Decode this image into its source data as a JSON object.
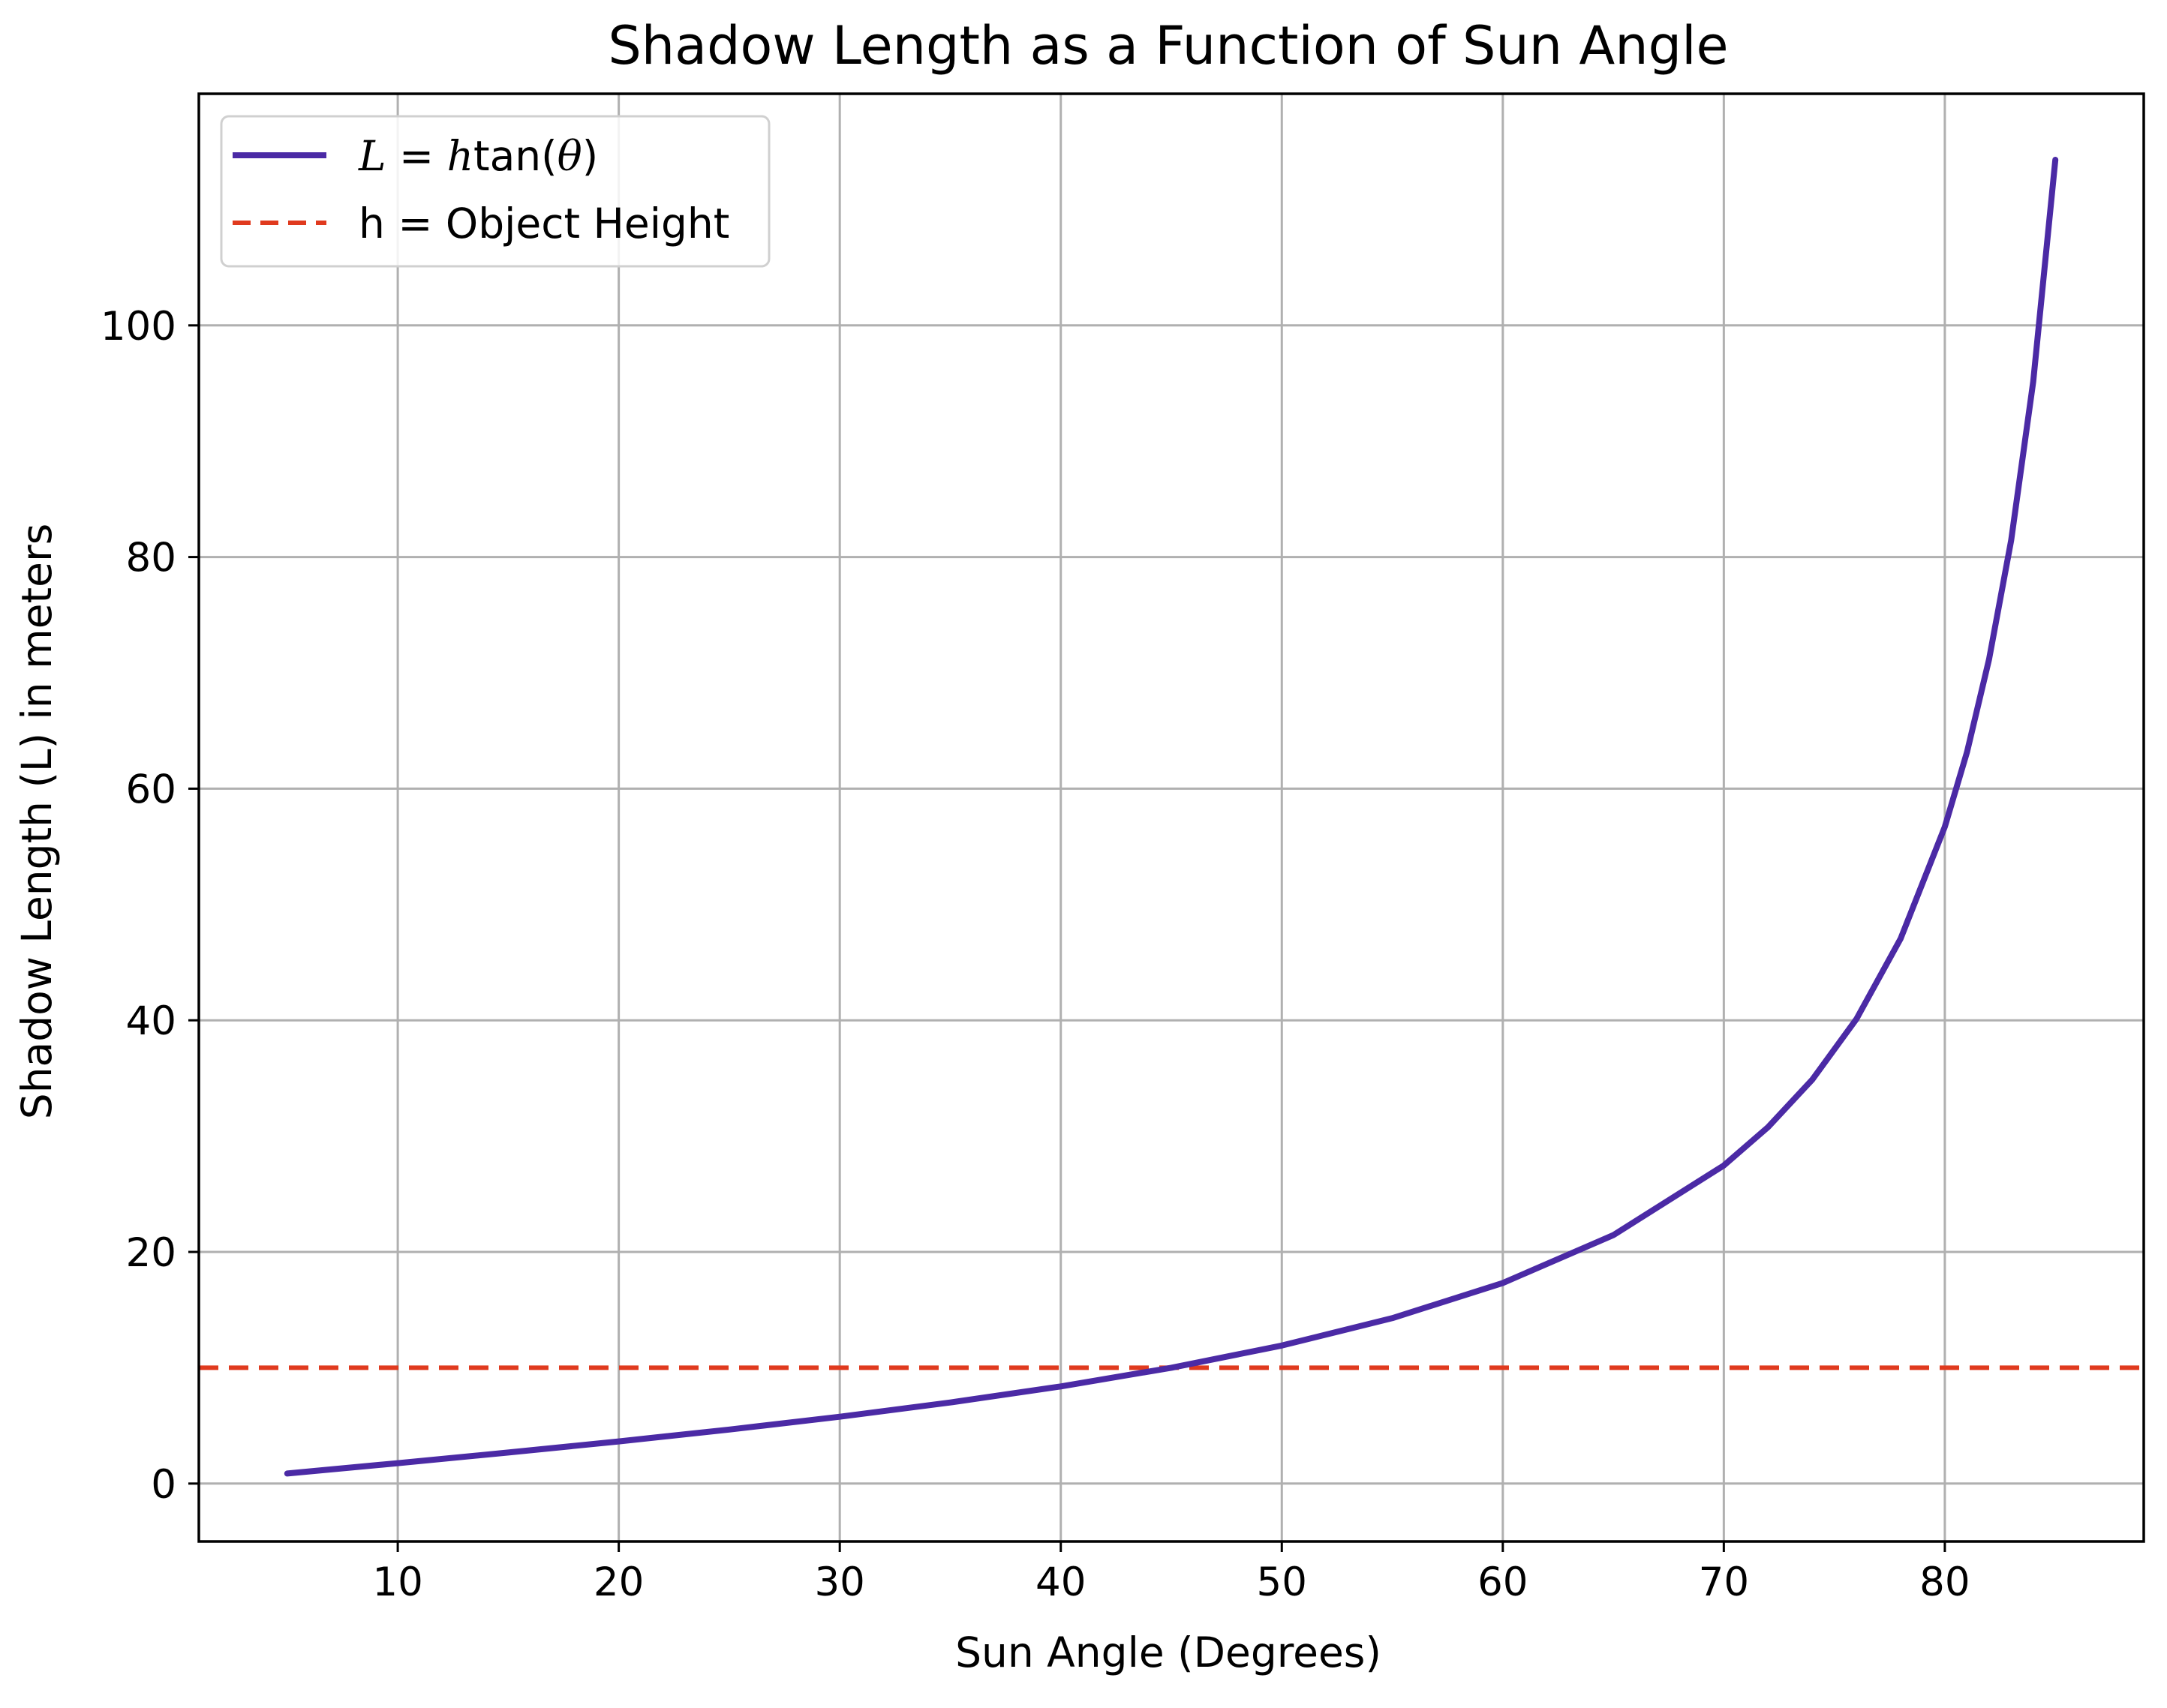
{
  "chart_data": {
    "type": "line",
    "title": "Shadow Length as a Function of Sun Angle",
    "xlabel": "Sun Angle (Degrees)",
    "ylabel": "Shadow Length (L) in meters",
    "xlim": [
      1,
      89
    ],
    "ylim": [
      -5,
      120
    ],
    "xticks": [
      10,
      20,
      30,
      40,
      50,
      60,
      70,
      80
    ],
    "yticks": [
      0,
      20,
      40,
      60,
      80,
      100
    ],
    "grid": true,
    "legend_position": "upper-left",
    "series": [
      {
        "name": "L = htan(θ)",
        "legend_prefix": "L",
        "legend_eq": " = ",
        "legend_var": "h",
        "legend_func": "tan(",
        "legend_arg": "θ",
        "legend_close": ")",
        "style": "solid",
        "color": "#4b2aa5",
        "x": [
          5,
          10,
          15,
          20,
          25,
          30,
          35,
          40,
          45,
          50,
          55,
          60,
          65,
          70,
          72,
          74,
          76,
          78,
          80,
          81,
          82,
          83,
          84,
          85
        ],
        "y": [
          0.87,
          1.76,
          2.68,
          3.64,
          4.66,
          5.77,
          7.0,
          8.39,
          10.0,
          11.92,
          14.28,
          17.32,
          21.45,
          27.47,
          30.78,
          34.87,
          40.11,
          47.05,
          56.71,
          63.14,
          71.15,
          81.44,
          95.14,
          114.3
        ]
      },
      {
        "name": "h = Object Height",
        "style": "dashed",
        "color": "#e03a1e",
        "y": 10
      }
    ]
  }
}
